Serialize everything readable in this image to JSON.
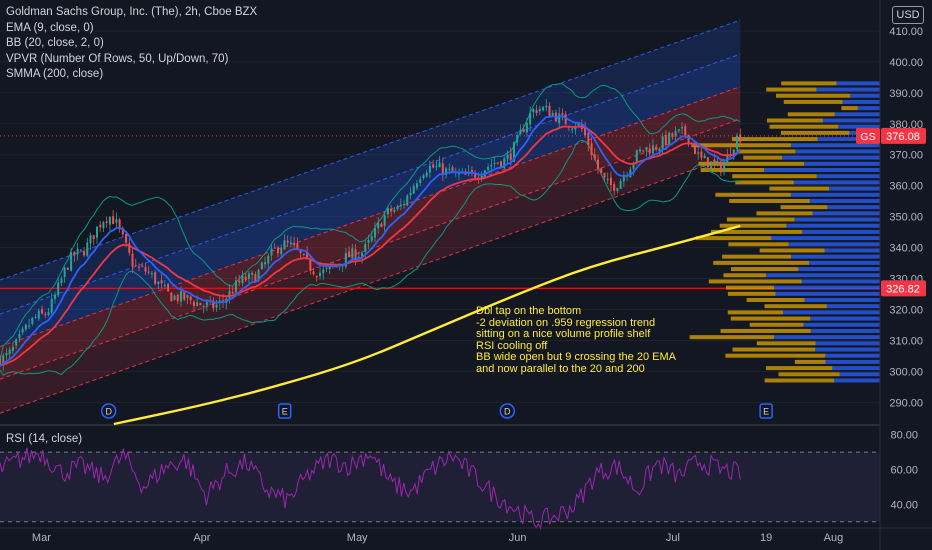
{
  "legend": {
    "title": "Goldman Sachs Group, Inc. (The), 2h, Cboe BZX",
    "indicators": [
      "EMA (9, close, 0)",
      "BB (20, close, 2, 0)",
      "VPVR (Number Of Rows, 50, Up/Down, 70)",
      "SMMA (200, close)"
    ]
  },
  "currency": "USD",
  "rsi_label": "RSI (14, close)",
  "annotation": "Dbl tap on the bottom\n-2 deviation on .959 regression trend\nsitting on a nice volume profile shelf\nRSI cooling off\nBB wide open but 9 crossing the 20 EMA\nand now parallel to the 20 and 200",
  "price_badges": [
    {
      "symbol": "GS",
      "value": "376.08",
      "color": "#f23645"
    },
    {
      "value": "326.82",
      "color": "#f23645"
    }
  ],
  "event_markers": [
    {
      "label": "D",
      "color": "#2962ff",
      "date": "2023-03-14"
    },
    {
      "label": "E",
      "color": "#2962ff",
      "date": "2023-04-17"
    },
    {
      "label": "D",
      "color": "#2962ff",
      "date": "2023-05-30"
    },
    {
      "label": "E",
      "color": "#2962ff",
      "date": "2023-07-19"
    }
  ],
  "colors": {
    "background": "#131722",
    "up": "#26a69a",
    "down": "#ef5350",
    "ema": "#2962ff",
    "bb": "#089981",
    "bb_basis": "#f23645",
    "smma": "#ffeb3b",
    "rsi": "#9c27b0",
    "channel_upper": "#2962ff",
    "channel_lower": "#f23645",
    "vp_up": "#2962ff",
    "vp_down": "#e0a600"
  },
  "chart_data": [
    {
      "type": "line",
      "title": "Goldman Sachs Group, Inc. (The), 2h, Cboe BZX",
      "x_ticks": [
        "Mar",
        "Apr",
        "May",
        "Jun",
        "Jul",
        "19",
        "Aug"
      ],
      "y_ticks": [
        290,
        300,
        310,
        320,
        330,
        340,
        350,
        360,
        370,
        380,
        390,
        400,
        410
      ],
      "ylim": [
        283,
        420
      ],
      "xlim": [
        "2023-02-21",
        "2023-08-10"
      ],
      "horizontal_line": 326.82,
      "last_price": 376.08,
      "series": [
        {
          "name": "Price",
          "dates": [
            "2023-02-21",
            "2023-03-01",
            "2023-03-08",
            "2023-03-14",
            "2023-03-20",
            "2023-03-27",
            "2023-04-03",
            "2023-04-10",
            "2023-04-17",
            "2023-04-24",
            "2023-05-01",
            "2023-05-08",
            "2023-05-15",
            "2023-05-22",
            "2023-05-29",
            "2023-06-05",
            "2023-06-12",
            "2023-06-19",
            "2023-06-26",
            "2023-07-03",
            "2023-07-07",
            "2023-07-10",
            "2023-07-14"
          ],
          "values": [
            304,
            318,
            338,
            350,
            333,
            324,
            321,
            330,
            341,
            332,
            338,
            352,
            366,
            363,
            368,
            385,
            380,
            360,
            372,
            377,
            368,
            366,
            376
          ]
        },
        {
          "name": "SMMA (200, close)",
          "dates": [
            "2023-03-15",
            "2023-04-01",
            "2023-04-15",
            "2023-05-01",
            "2023-05-15",
            "2023-06-01",
            "2023-06-15",
            "2023-07-01",
            "2023-07-14"
          ],
          "values": [
            283,
            289,
            295,
            303,
            313,
            325,
            334,
            341,
            347
          ]
        }
      ],
      "regression_channel": {
        "start_date": "2023-02-21",
        "end_date": "2023-07-14",
        "start_center": 308,
        "end_center": 392,
        "inner_dev": 10.5,
        "outer_dev": 21.5
      }
    },
    {
      "type": "line",
      "title": "RSI (14, close)",
      "y_ticks": [
        40,
        60,
        80
      ],
      "ylim": [
        27,
        85
      ],
      "bands": [
        70,
        30
      ],
      "series": [
        {
          "name": "RSI",
          "values": [
            60,
            66,
            70,
            58,
            62,
            55,
            68,
            50,
            61,
            66,
            45,
            58,
            64,
            48,
            42,
            57,
            66,
            62,
            70,
            52,
            47,
            60,
            68,
            57,
            46,
            38,
            30,
            33,
            40,
            58,
            62,
            48,
            64,
            56,
            65,
            60,
            58
          ]
        }
      ]
    }
  ]
}
